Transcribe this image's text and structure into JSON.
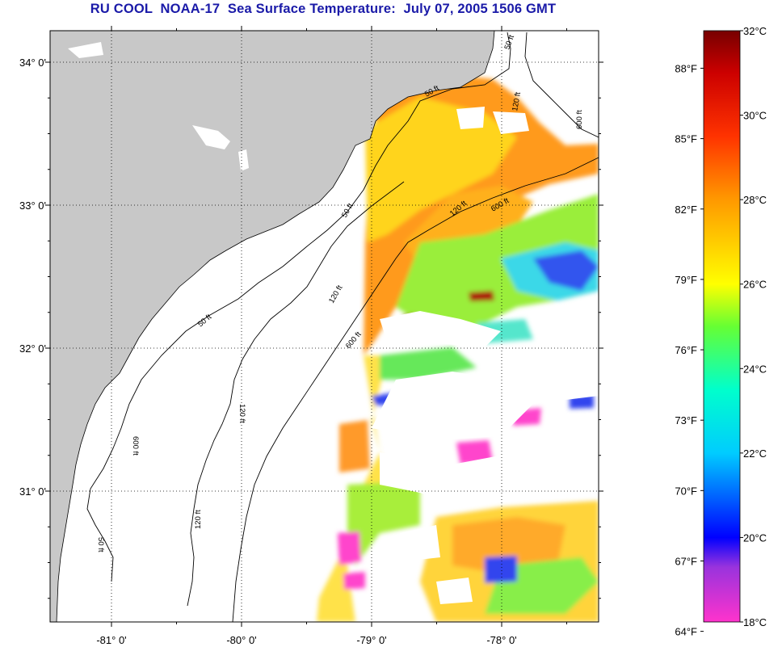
{
  "title": "RU COOL  NOAA-17  Sea Surface Temperature:  July 07, 2005 1506 GMT",
  "map": {
    "lat_ticks": [
      {
        "label": "34° 0'",
        "value": 34
      },
      {
        "label": "33° 0'",
        "value": 33
      },
      {
        "label": "32° 0'",
        "value": 32
      },
      {
        "label": "31° 0'",
        "value": 31
      }
    ],
    "lon_ticks": [
      {
        "label": "-81° 0'",
        "value": -81
      },
      {
        "label": "-80° 0'",
        "value": -80
      },
      {
        "label": "-79° 0'",
        "value": -79
      },
      {
        "label": "-78° 0'",
        "value": -78
      }
    ],
    "contour_labels": [
      "50 ft",
      "120 ft",
      "600 ft",
      "50 ft",
      "120 ft",
      "600 ft",
      "50 ft",
      "120 ft",
      "600 ft",
      "50 ft",
      "120 ft",
      "600 ft",
      "50 ft",
      "120 ft"
    ],
    "colors": {
      "land": "#c8c8c8",
      "cloud": "#ffffff",
      "title": "#1a1aa8"
    }
  },
  "colorbar": {
    "fahrenheit_labels": [
      "88°F",
      "85°F",
      "82°F",
      "79°F",
      "76°F",
      "73°F",
      "70°F",
      "67°F",
      "64°F"
    ],
    "celsius_labels": [
      "32°C",
      "30°C",
      "28°C",
      "26°C",
      "24°C",
      "22°C",
      "20°C",
      "18°C"
    ],
    "min_c": 18,
    "max_c": 32,
    "stops": [
      {
        "c": 18,
        "color": "#ff33cc"
      },
      {
        "c": 19.3,
        "color": "#9933dd"
      },
      {
        "c": 20,
        "color": "#0000ff"
      },
      {
        "c": 22,
        "color": "#00ccff"
      },
      {
        "c": 23.5,
        "color": "#00ffcc"
      },
      {
        "c": 25,
        "color": "#66ff33"
      },
      {
        "c": 26,
        "color": "#ffff00"
      },
      {
        "c": 28,
        "color": "#ff9900"
      },
      {
        "c": 29.5,
        "color": "#ff3300"
      },
      {
        "c": 31,
        "color": "#cc0000"
      },
      {
        "c": 32,
        "color": "#770000"
      }
    ]
  }
}
